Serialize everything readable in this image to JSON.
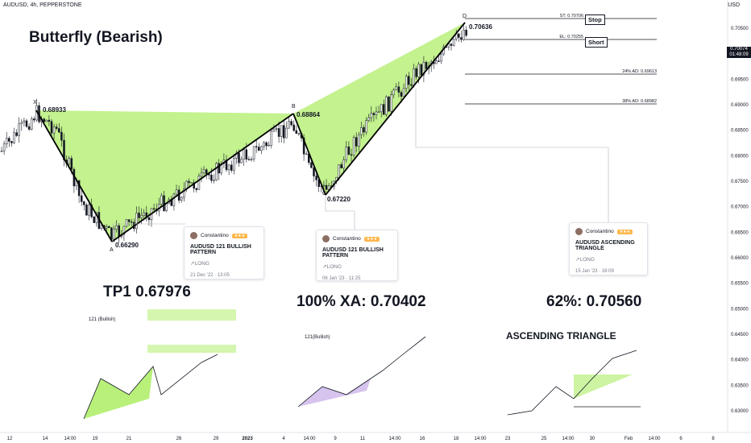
{
  "header": {
    "symbol_line": "AUDUSD, 4h, PEPPERSTONE",
    "currency": "USD"
  },
  "headlines": {
    "pattern_title": "Butterfly (Bearish)",
    "tp1": "TP1 0.67976",
    "xa100": "100% XA: 0.70402",
    "pct62": "62%: 0.70560",
    "asc_triangle": "ASCENDING TRIANGLE"
  },
  "price_box": {
    "price": "0.70074",
    "time": "01:48:09"
  },
  "levels": [
    {
      "label": "ST: 0.70706",
      "value": 0.70706,
      "tag": "Stop"
    },
    {
      "label": "EL: 0.70255",
      "value": 0.70255,
      "tag": "Short"
    },
    {
      "label": "24% AD: 0.69613",
      "value": 0.69613,
      "tag": ""
    },
    {
      "label": "38% AD: 0.68982",
      "value": 0.68982,
      "tag": ""
    }
  ],
  "ideas": [
    {
      "author": "Constantino",
      "title": "AUDUSD 121 BULLISH PATTERN",
      "direction": "LONG",
      "date": "21 Dec '22 · 13:05"
    },
    {
      "author": "Constantino",
      "title": "AUDUSD 121 BULLISH PATTERN",
      "direction": "LONG",
      "date": "06 Jan '23 · 11:25"
    },
    {
      "author": "Constantino",
      "title": "AUDUSD ASCENDING TRIANGLE",
      "direction": "LONG",
      "date": "15 Jan '23 · 16:09"
    }
  ],
  "chart_data": {
    "type": "line",
    "title": "Butterfly (Bearish)",
    "symbol": "AUDUSD, 4h, PEPPERSTONE",
    "ylim": [
      0.627,
      0.709
    ],
    "y_ticks": [
      0.705,
      0.7,
      0.695,
      0.69,
      0.685,
      0.68,
      0.675,
      0.67,
      0.665,
      0.66,
      0.655,
      0.65,
      0.645,
      0.64,
      0.635,
      0.63
    ],
    "y_tick_labels": [
      "0.70500",
      "0.70000",
      "0.69500",
      "0.69000",
      "0.68500",
      "0.68000",
      "0.67500",
      "0.67000",
      "0.66500",
      "0.66000",
      "0.65500",
      "0.65000",
      "0.64500",
      "0.64000",
      "0.63500",
      "0.63000"
    ],
    "x_tick_labels": [
      "12",
      "14",
      "14:00",
      "19",
      "21",
      "26",
      "29",
      "2023",
      "4",
      "14:00",
      "9",
      "11",
      "14:00",
      "16",
      "18",
      "14:00",
      "23",
      "25",
      "14:00",
      "30",
      "Feb",
      "14:00",
      "6",
      "8"
    ],
    "pattern_points": [
      {
        "name": "X",
        "value": 0.68933,
        "label": "0.68933"
      },
      {
        "name": "A",
        "value": 0.6629,
        "label": "0.66290"
      },
      {
        "name": "B",
        "value": 0.68864,
        "label": "0.68864"
      },
      {
        "name": "C",
        "value": 0.6722,
        "label": "0.67220"
      },
      {
        "name": "D",
        "value": 0.70636,
        "label": "0.70636"
      }
    ],
    "grid": false
  },
  "colors": {
    "pattern_fill": "#b8f07a",
    "pattern_line": "#000000",
    "candle": "#131722"
  }
}
